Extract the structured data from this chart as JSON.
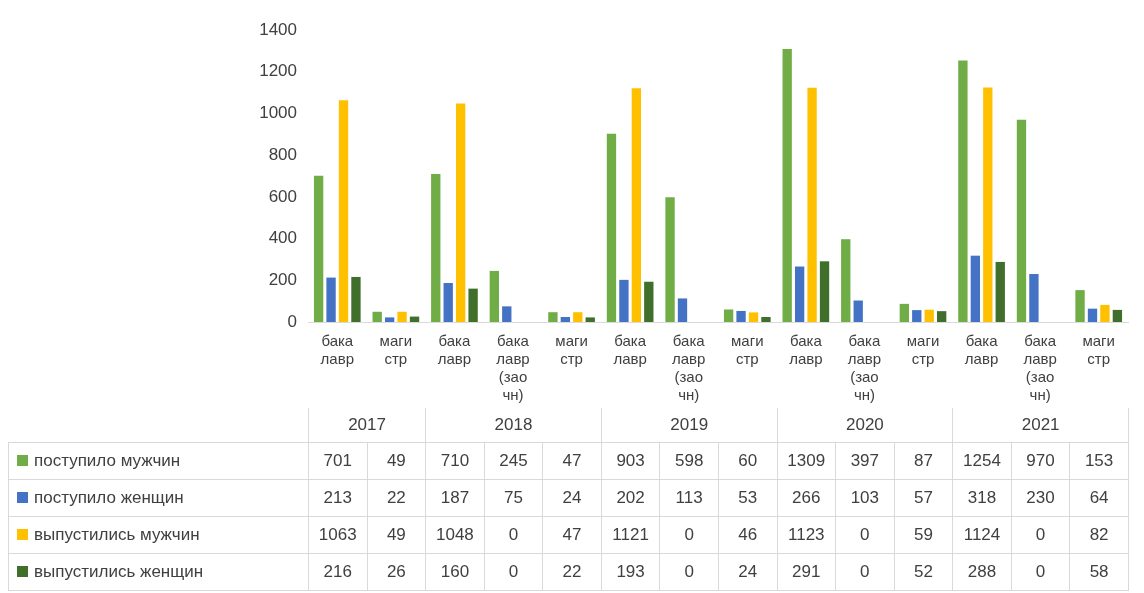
{
  "chart_data": {
    "type": "bar",
    "categories": [
      "бакалавр",
      "магистр",
      "бакалавр",
      "бакалавр (заочн)",
      "магистр",
      "бакалавр",
      "бакалавр (заочн)",
      "магистр",
      "бакалавр",
      "бакалавр (заочн)",
      "магистр",
      "бакалавр",
      "бакалавр (заочн)",
      "магистр"
    ],
    "annotations": [
      "2017",
      "2018",
      "2019",
      "2020",
      "2021"
    ],
    "series": [
      {
        "name": "поступило мужчин",
        "color": "#70ad47",
        "values": [
          701,
          49,
          710,
          245,
          47,
          903,
          598,
          60,
          1309,
          397,
          87,
          1254,
          970,
          153
        ]
      },
      {
        "name": "поступило женщин",
        "color": "#4472c4",
        "values": [
          213,
          22,
          187,
          75,
          24,
          202,
          113,
          53,
          266,
          103,
          57,
          318,
          230,
          64
        ]
      },
      {
        "name": "выпустились мужчин",
        "color": "#ffc000",
        "values": [
          1063,
          49,
          1048,
          0,
          47,
          1121,
          0,
          46,
          1123,
          0,
          59,
          1124,
          0,
          82
        ]
      },
      {
        "name": "выпустились женщин",
        "color": "#3f6f2a",
        "values": [
          216,
          26,
          160,
          0,
          22,
          193,
          0,
          24,
          291,
          0,
          52,
          288,
          0,
          58
        ]
      }
    ],
    "ylim": [
      0,
      1400
    ],
    "yticks": [
      0,
      200,
      400,
      600,
      800,
      1000,
      1200,
      1400
    ],
    "grid": false,
    "legend": "bottom",
    "data_labels": true
  }
}
